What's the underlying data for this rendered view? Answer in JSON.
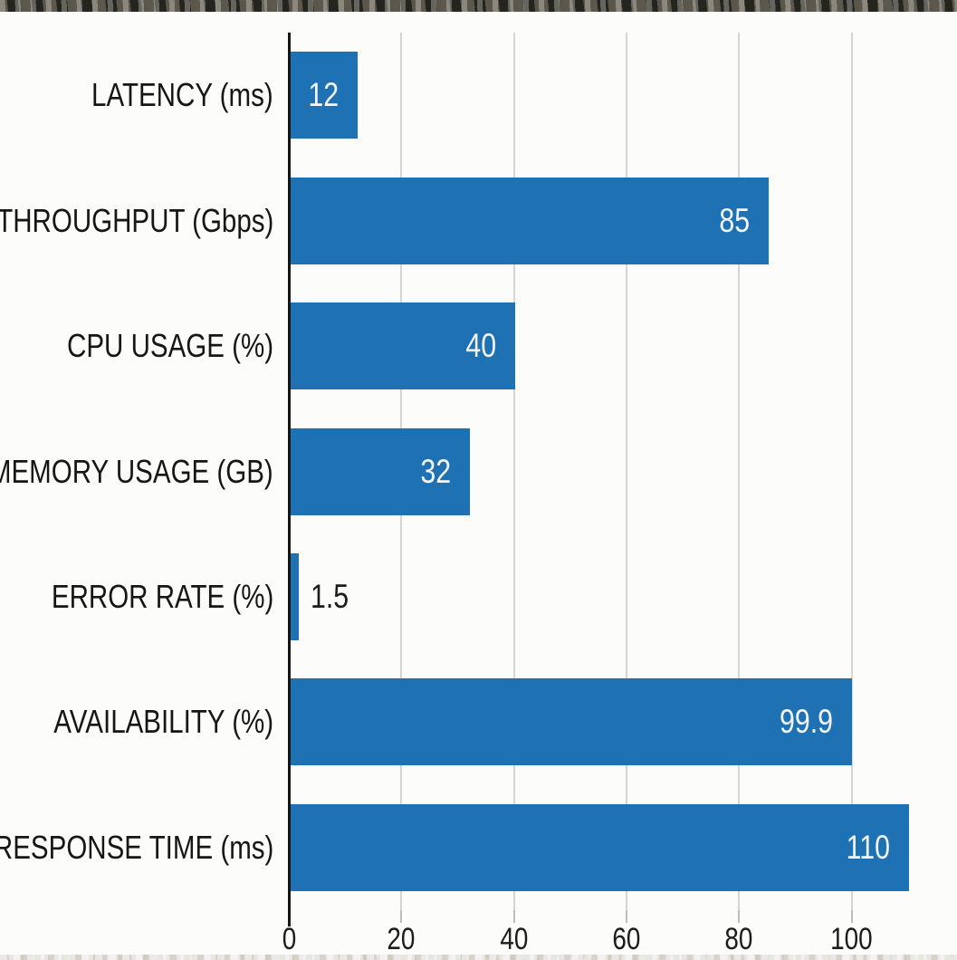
{
  "chart_data": {
    "type": "bar",
    "orientation": "horizontal",
    "title": "",
    "xlabel": "",
    "ylabel": "",
    "categories": [
      "LATENCY (ms)",
      "THROUGHPUT (Gbps)",
      "CPU USAGE (%)",
      "MEMORY USAGE (GB)",
      "ERROR RATE (%)",
      "AVAILABILITY (%)",
      "RESPONSE TIME (ms)"
    ],
    "values": [
      12,
      85,
      40,
      32,
      1.5,
      99.9,
      110
    ],
    "value_labels": [
      "12",
      "85",
      "40",
      "32",
      "1.5",
      "99.9",
      "110"
    ],
    "x_ticks": [
      0,
      20,
      40,
      60,
      80,
      100
    ],
    "x_tick_labels": [
      "0",
      "20",
      "40",
      "60",
      "80",
      "100"
    ],
    "xlim": [
      0,
      116
    ],
    "grid": "vertical-gridlines-on",
    "legend": "none",
    "colors": {
      "bar": "#1e72b4",
      "gridline": "#d5d5d5",
      "axis": "#161616",
      "category_text": "#161616",
      "tick_text": "#1c1c1c",
      "value_text_inside": "#f2f4f6",
      "value_text_outside": "#1c1c1c",
      "background": "#fcfcfa"
    }
  }
}
